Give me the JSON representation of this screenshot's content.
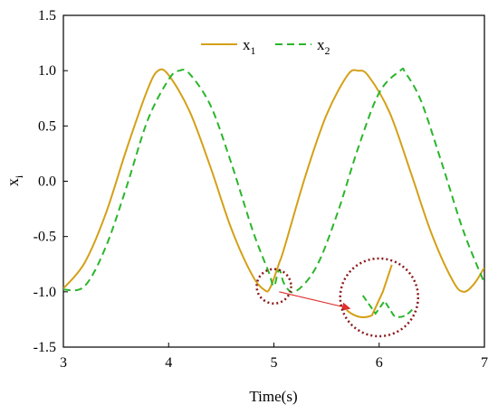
{
  "chart_data": {
    "type": "line",
    "xlabel": "Time(s)",
    "ylabel": "x",
    "ylabel_sub": "i",
    "xlim": [
      3,
      7
    ],
    "ylim": [
      -1.5,
      1.5
    ],
    "x_ticks": [
      "3",
      "4",
      "5",
      "6",
      "7"
    ],
    "y_ticks": [
      "1.5",
      "1.0",
      "0.5",
      "0.0",
      "-0.5",
      "-1.0",
      "-1.5"
    ],
    "legend_position": "top-center",
    "grid": false,
    "series": [
      {
        "name": "x",
        "name_sub": "1",
        "color": "#D4A017",
        "style": "solid",
        "x": [
          3.0,
          3.2,
          3.4,
          3.6,
          3.8,
          3.9,
          4.0,
          4.2,
          4.4,
          4.6,
          4.8,
          4.92,
          4.96,
          5.0,
          5.05,
          5.1,
          5.3,
          5.5,
          5.7,
          5.8,
          5.9,
          6.1,
          6.3,
          6.5,
          6.7,
          6.8,
          6.9,
          7.0
        ],
        "y": [
          -0.97,
          -0.74,
          -0.3,
          0.29,
          0.83,
          1.0,
          0.96,
          0.63,
          0.12,
          -0.44,
          -0.86,
          -0.99,
          -0.97,
          -0.88,
          -0.74,
          -0.6,
          0.05,
          0.6,
          0.96,
          1.0,
          0.95,
          0.62,
          0.08,
          -0.48,
          -0.9,
          -1.0,
          -0.93,
          -0.78
        ]
      },
      {
        "name": "x",
        "name_sub": "2",
        "color": "#2BB52B",
        "style": "dashed",
        "x": [
          3.0,
          3.2,
          3.4,
          3.6,
          3.8,
          4.0,
          4.1,
          4.2,
          4.4,
          4.6,
          4.8,
          4.95,
          5.0,
          5.05,
          5.1,
          5.2,
          5.4,
          5.6,
          5.8,
          6.0,
          6.2,
          6.25,
          6.4,
          6.6,
          6.8,
          7.0
        ],
        "y": [
          -0.98,
          -0.95,
          -0.6,
          -0.05,
          0.55,
          0.92,
          1.0,
          0.97,
          0.68,
          0.15,
          -0.45,
          -0.82,
          -0.95,
          -0.8,
          -0.93,
          -1.0,
          -0.78,
          -0.3,
          0.3,
          0.8,
          1.0,
          0.98,
          0.72,
          0.15,
          -0.45,
          -0.92
        ]
      }
    ],
    "annotations": [
      {
        "type": "zoom-circle",
        "x": 5.0,
        "y": -0.95,
        "color": "#8B1A1A"
      },
      {
        "type": "zoom-circle",
        "x": 6.0,
        "y": -1.05,
        "color": "#8B1A1A"
      },
      {
        "type": "arrow",
        "from": [
          5.05,
          -1.0
        ],
        "to": [
          5.72,
          -1.15
        ],
        "color": "#E03030"
      }
    ]
  }
}
